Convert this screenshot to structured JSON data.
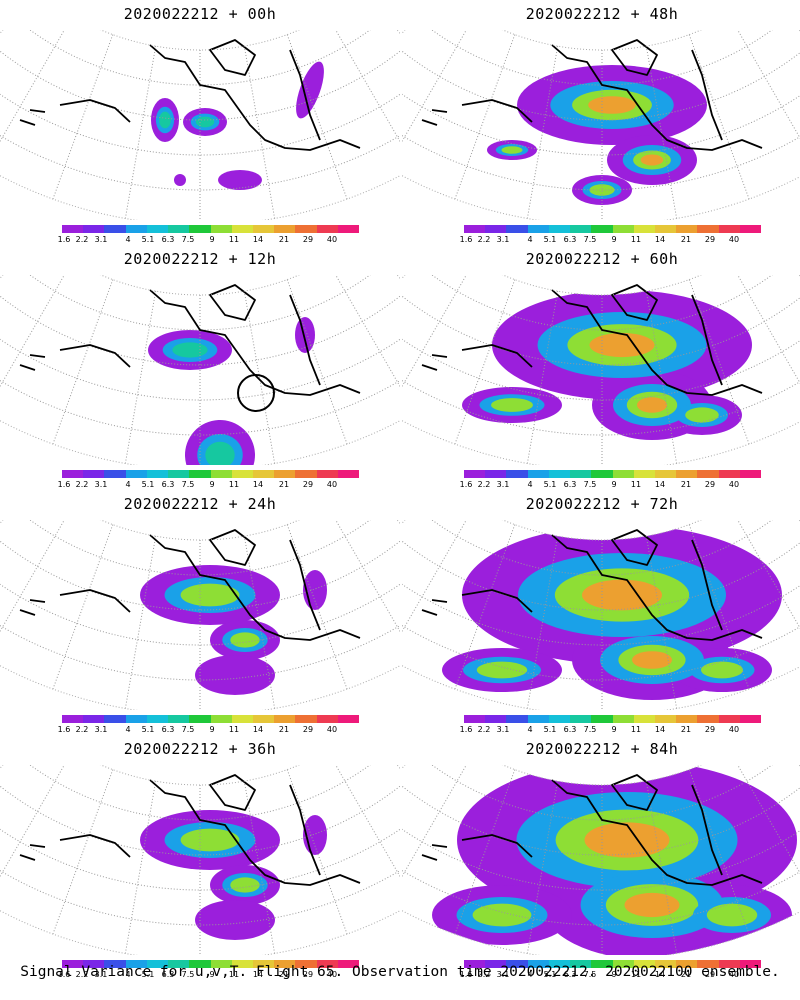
{
  "palette": [
    "#9b1fdc",
    "#7a26e8",
    "#3a4fe8",
    "#1aa1e8",
    "#14c0d9",
    "#16c8a0",
    "#1fc83a",
    "#8ede35",
    "#d8e23a",
    "#e6c638",
    "#eca030",
    "#ee7034",
    "#ee3a52",
    "#ee1a7a"
  ],
  "colorbar_ticks": [
    "1.6",
    "2.2",
    "3.1",
    "4",
    "5.1",
    "6.3",
    "7.5",
    "9",
    "11",
    "14",
    "21",
    "29",
    "40"
  ],
  "panels": [
    {
      "title": "2020022212 + 00h",
      "intensity": 0,
      "circle": false
    },
    {
      "title": "2020022212 + 48h",
      "intensity": 3,
      "circle": false
    },
    {
      "title": "2020022212 + 12h",
      "intensity": 1,
      "circle": true
    },
    {
      "title": "2020022212 + 60h",
      "intensity": 4,
      "circle": false
    },
    {
      "title": "2020022212 + 24h",
      "intensity": 2,
      "circle": false
    },
    {
      "title": "2020022212 + 72h",
      "intensity": 5,
      "circle": false
    },
    {
      "title": "2020022212 + 36h",
      "intensity": 2,
      "circle": false
    },
    {
      "title": "2020022212 + 84h",
      "intensity": 6,
      "circle": false
    }
  ],
  "footer": "Signal Variance for u,v,T. Flight 65. Observation time 2020022212. 2020022100 ensemble."
}
